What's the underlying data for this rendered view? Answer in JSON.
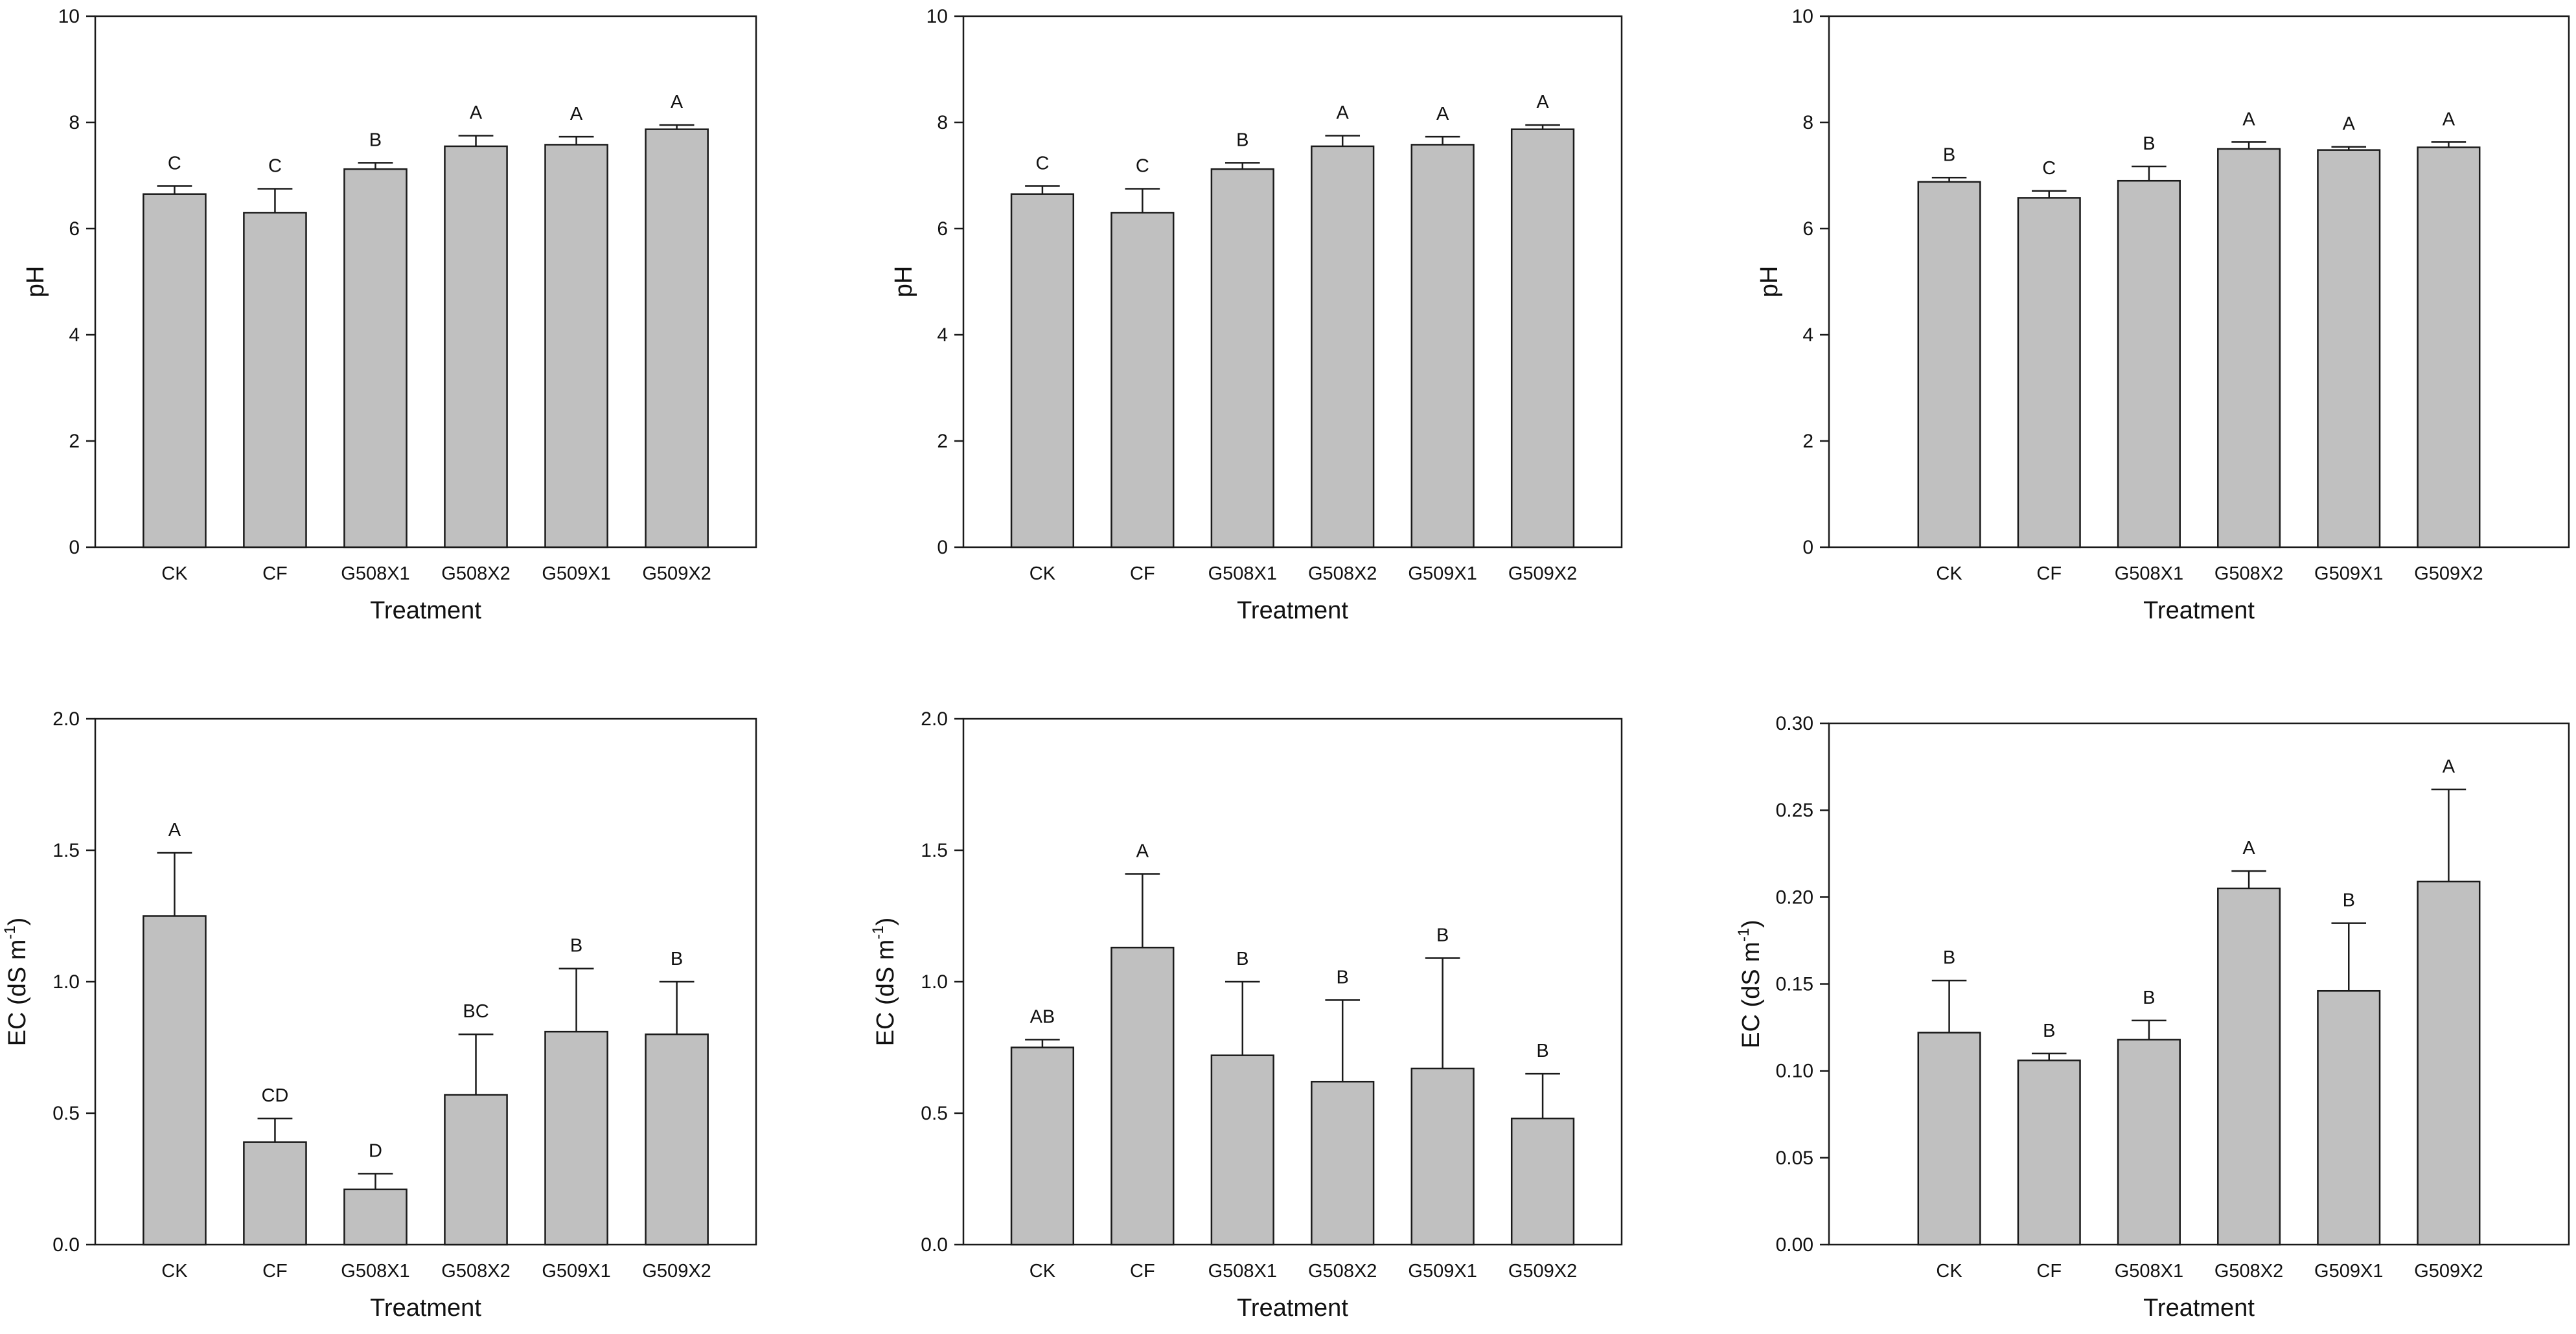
{
  "figure": {
    "colors": {
      "bar_fill": "#c0c0c0",
      "bar_stroke": "#1a1a1a",
      "axis": "#1a1a1a"
    }
  },
  "chart_data": [
    {
      "type": "bar",
      "categories": [
        "CK",
        "CF",
        "G508X1",
        "G508X2",
        "G509X1",
        "G509X2"
      ],
      "values": [
        6.65,
        6.3,
        7.12,
        7.55,
        7.58,
        7.87
      ],
      "errors": [
        0.15,
        0.45,
        0.12,
        0.2,
        0.15,
        0.08
      ],
      "significance": [
        "C",
        "C",
        "B",
        "A",
        "A",
        "A"
      ],
      "xlabel": "Treatment",
      "ylabel": "pH",
      "ylim": [
        0,
        10
      ],
      "yticks": [
        "0",
        "2",
        "4",
        "6",
        "8",
        "10"
      ]
    },
    {
      "type": "bar",
      "categories": [
        "CK",
        "CF",
        "G508X1",
        "G508X2",
        "G509X1",
        "G509X2"
      ],
      "values": [
        6.65,
        6.3,
        7.12,
        7.55,
        7.58,
        7.87
      ],
      "errors": [
        0.15,
        0.45,
        0.12,
        0.2,
        0.15,
        0.08
      ],
      "significance": [
        "C",
        "C",
        "B",
        "A",
        "A",
        "A"
      ],
      "xlabel": "Treatment",
      "ylabel": "pH",
      "ylim": [
        0,
        10
      ],
      "yticks": [
        "0",
        "2",
        "4",
        "6",
        "8",
        "10"
      ]
    },
    {
      "type": "bar",
      "categories": [
        "CK",
        "CF",
        "G508X1",
        "G508X2",
        "G509X1",
        "G509X2"
      ],
      "values": [
        6.88,
        6.58,
        6.9,
        7.5,
        7.48,
        7.53
      ],
      "errors": [
        0.08,
        0.13,
        0.27,
        0.13,
        0.06,
        0.1
      ],
      "significance": [
        "B",
        "C",
        "B",
        "A",
        "A",
        "A"
      ],
      "xlabel": "Treatment",
      "ylabel": "pH",
      "ylim": [
        0,
        10
      ],
      "yticks": [
        "0",
        "2",
        "4",
        "6",
        "8",
        "10"
      ]
    },
    {
      "type": "bar",
      "categories": [
        "CK",
        "CF",
        "G508X1",
        "G508X2",
        "G509X1",
        "G509X2"
      ],
      "values": [
        1.25,
        0.39,
        0.21,
        0.57,
        0.81,
        0.8
      ],
      "errors": [
        0.24,
        0.09,
        0.06,
        0.23,
        0.24,
        0.2
      ],
      "significance": [
        "A",
        "CD",
        "D",
        "BC",
        "B",
        "B"
      ],
      "xlabel": "Treatment",
      "ylabel_main": "EC (dS m",
      "ylabel_sup": "-1",
      "ylabel_close": ")",
      "ylim": [
        0,
        2
      ],
      "yticks": [
        "0.0",
        "0.5",
        "1.0",
        "1.5",
        "2.0"
      ]
    },
    {
      "type": "bar",
      "categories": [
        "CK",
        "CF",
        "G508X1",
        "G508X2",
        "G509X1",
        "G509X2"
      ],
      "values": [
        0.75,
        1.13,
        0.72,
        0.62,
        0.67,
        0.48
      ],
      "errors": [
        0.03,
        0.28,
        0.28,
        0.31,
        0.42,
        0.17
      ],
      "significance": [
        "AB",
        "A",
        "B",
        "B",
        "B",
        "B"
      ],
      "xlabel": "Treatment",
      "ylabel_main": "EC (dS m",
      "ylabel_sup": "-1",
      "ylabel_close": ")",
      "ylim": [
        0,
        2
      ],
      "yticks": [
        "0.0",
        "0.5",
        "1.0",
        "1.5",
        "2.0"
      ]
    },
    {
      "type": "bar",
      "categories": [
        "CK",
        "CF",
        "G508X1",
        "G508X2",
        "G509X1",
        "G509X2"
      ],
      "values": [
        0.122,
        0.106,
        0.118,
        0.205,
        0.146,
        0.209
      ],
      "errors": [
        0.03,
        0.004,
        0.011,
        0.01,
        0.039,
        0.053
      ],
      "significance": [
        "B",
        "B",
        "B",
        "A",
        "B",
        "A"
      ],
      "xlabel": "Treatment",
      "ylabel_main": "EC (dS m",
      "ylabel_sup": "-1",
      "ylabel_close": ")",
      "ylim": [
        0,
        0.3
      ],
      "yticks": [
        "0.00",
        "0.05",
        "0.10",
        "0.15",
        "0.20",
        "0.25",
        "0.30"
      ]
    }
  ]
}
